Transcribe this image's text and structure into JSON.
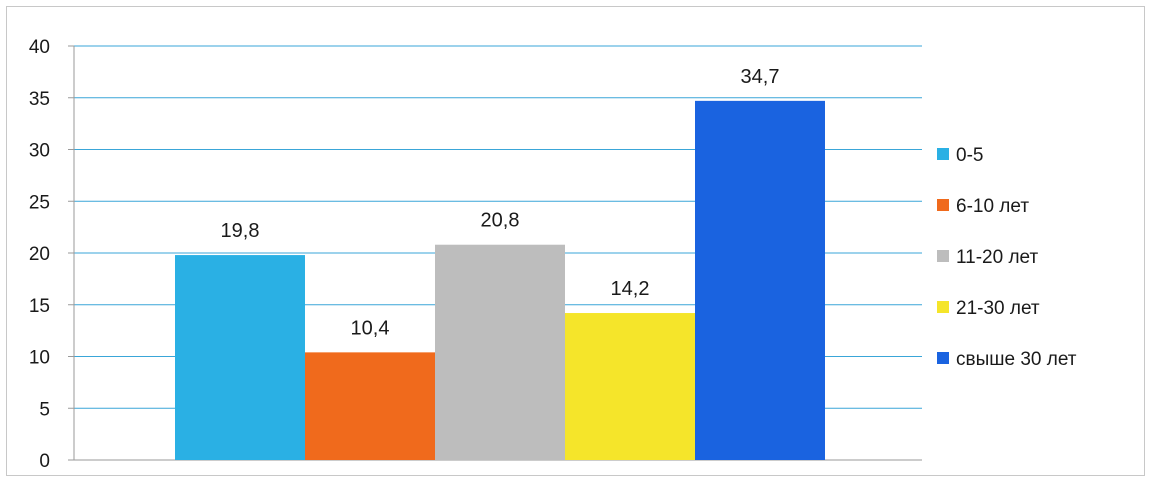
{
  "chart_data": {
    "type": "bar",
    "title": "",
    "xlabel": "",
    "ylabel": "",
    "ylim": [
      0,
      40
    ],
    "yticks": [
      "0",
      "5",
      "10",
      "15",
      "20",
      "25",
      "30",
      "35",
      "40"
    ],
    "grid": true,
    "legend_position": "right",
    "series": [
      {
        "name": "0-5",
        "value": 19.8,
        "label": "19,8",
        "color": "#2ab0e4"
      },
      {
        "name": "6-10 лет",
        "value": 10.4,
        "label": "10,4",
        "color": "#f06a1c"
      },
      {
        "name": "11-20 лет",
        "value": 20.8,
        "label": "20,8",
        "color": "#bdbdbd"
      },
      {
        "name": "21-30 лет",
        "value": 14.2,
        "label": "14,2",
        "color": "#f5e52a"
      },
      {
        "name": "свыше 30 лет",
        "value": 34.7,
        "label": "34,7",
        "color": "#1a63e0"
      }
    ],
    "gridline_color": "#3aa6d8"
  }
}
